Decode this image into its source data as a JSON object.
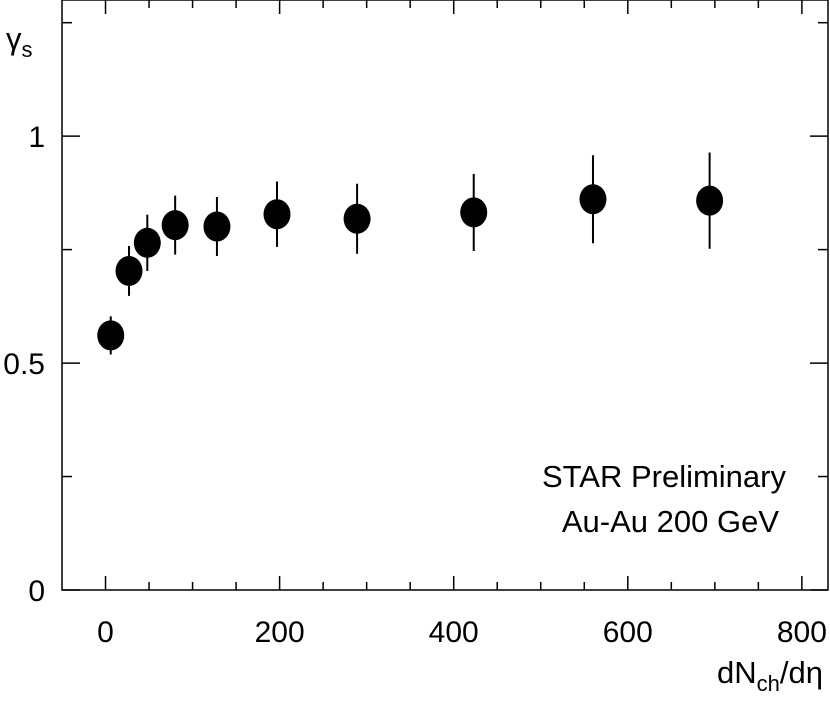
{
  "chart_data": {
    "type": "scatter",
    "xlabel": "dNch/dη",
    "xlabel_parts": {
      "main": "dN",
      "sub": "ch",
      "tail": "/dη"
    },
    "ylabel": "γs",
    "ylabel_parts": {
      "main": "γ",
      "sub": "s"
    },
    "xlim": [
      -50,
      830
    ],
    "ylim": [
      0,
      1.3
    ],
    "x_ticks": [
      0,
      200,
      400,
      600,
      800
    ],
    "x_tick_labels": [
      "0",
      "200",
      "400",
      "600",
      "800"
    ],
    "y_ticks": [
      0,
      0.5,
      1
    ],
    "y_tick_labels": [
      "0",
      "0.5",
      "1"
    ],
    "grid": false,
    "annotations": [
      "STAR Preliminary",
      "Au-Au 200 GeV"
    ],
    "series": [
      {
        "points": [
          {
            "x": 6,
            "y": 0.561,
            "err": 0.042
          },
          {
            "x": 27,
            "y": 0.703,
            "err": 0.055
          },
          {
            "x": 48,
            "y": 0.765,
            "err": 0.062
          },
          {
            "x": 80,
            "y": 0.804,
            "err": 0.065
          },
          {
            "x": 128,
            "y": 0.801,
            "err": 0.065
          },
          {
            "x": 197,
            "y": 0.828,
            "err": 0.072
          },
          {
            "x": 289,
            "y": 0.818,
            "err": 0.077
          },
          {
            "x": 423,
            "y": 0.832,
            "err": 0.085
          },
          {
            "x": 560,
            "y": 0.861,
            "err": 0.097
          },
          {
            "x": 694,
            "y": 0.858,
            "err": 0.106
          }
        ]
      }
    ]
  }
}
